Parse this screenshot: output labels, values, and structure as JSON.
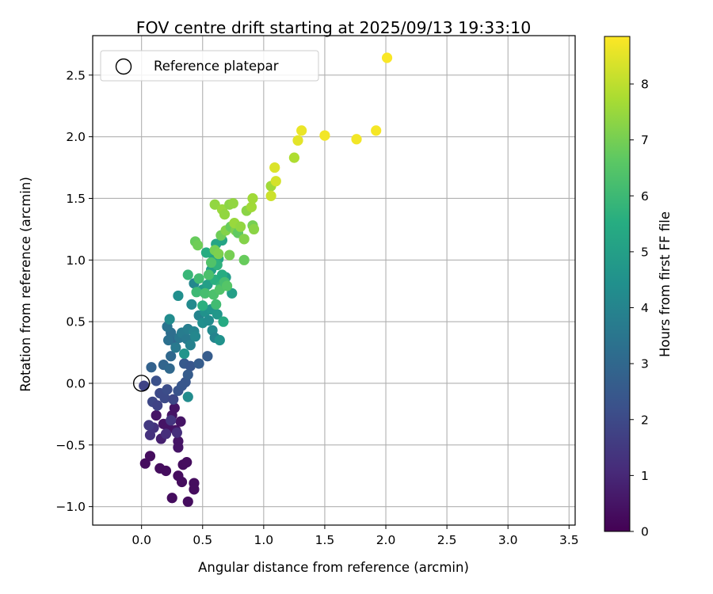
{
  "chart_data": {
    "type": "scatter",
    "title": "FOV centre drift starting at 2025/09/13 19:33:10",
    "xlabel": "Angular distance from reference (arcmin)",
    "ylabel": "Rotation from reference (arcmin)",
    "xlim": [
      -0.4,
      3.55
    ],
    "ylim": [
      -1.15,
      2.82
    ],
    "xticks": [
      0.0,
      0.5,
      1.0,
      1.5,
      2.0,
      2.5,
      3.0,
      3.5
    ],
    "xtick_labels": [
      "0.0",
      "0.5",
      "1.0",
      "1.5",
      "2.0",
      "2.5",
      "3.0",
      "3.5"
    ],
    "yticks": [
      -1.0,
      -0.5,
      0.0,
      0.5,
      1.0,
      1.5,
      2.0,
      2.5
    ],
    "ytick_labels": [
      "−1.0",
      "−0.5",
      "0.0",
      "0.5",
      "1.0",
      "1.5",
      "2.0",
      "2.5"
    ],
    "grid": true,
    "legend": {
      "position": "top-left",
      "entries": [
        "Reference platepar"
      ]
    },
    "reference_point": {
      "name": "Reference platepar",
      "x": 0.0,
      "y": 0.0
    },
    "colorbar": {
      "label": "Hours from first FF file",
      "min": 0,
      "max": 8.85,
      "ticks": [
        0,
        1,
        2,
        3,
        4,
        5,
        6,
        7,
        8
      ],
      "tick_labels": [
        "0",
        "1",
        "2",
        "3",
        "4",
        "5",
        "6",
        "7",
        "8"
      ],
      "colormap": "viridis"
    },
    "points": [
      {
        "x": 0.03,
        "y": -0.65,
        "h": 0.3
      },
      {
        "x": 0.07,
        "y": -0.59,
        "h": 0.3
      },
      {
        "x": 0.15,
        "y": -0.69,
        "h": 0.3
      },
      {
        "x": 0.2,
        "y": -0.71,
        "h": 0.3
      },
      {
        "x": 0.25,
        "y": -0.93,
        "h": 0.3
      },
      {
        "x": 0.3,
        "y": -0.75,
        "h": 0.3
      },
      {
        "x": 0.33,
        "y": -0.8,
        "h": 0.3
      },
      {
        "x": 0.34,
        "y": -0.66,
        "h": 0.3
      },
      {
        "x": 0.37,
        "y": -0.64,
        "h": 0.3
      },
      {
        "x": 0.38,
        "y": -0.96,
        "h": 0.3
      },
      {
        "x": 0.43,
        "y": -0.81,
        "h": 0.3
      },
      {
        "x": 0.43,
        "y": -0.86,
        "h": 0.3
      },
      {
        "x": 0.12,
        "y": -0.26,
        "h": 0.5
      },
      {
        "x": 0.18,
        "y": -0.33,
        "h": 0.5
      },
      {
        "x": 0.22,
        "y": -0.36,
        "h": 0.5
      },
      {
        "x": 0.25,
        "y": -0.26,
        "h": 0.5
      },
      {
        "x": 0.27,
        "y": -0.2,
        "h": 0.5
      },
      {
        "x": 0.28,
        "y": -0.38,
        "h": 0.5
      },
      {
        "x": 0.3,
        "y": -0.47,
        "h": 0.5
      },
      {
        "x": 0.32,
        "y": -0.31,
        "h": 0.5
      },
      {
        "x": 0.3,
        "y": -0.52,
        "h": 0.5
      },
      {
        "x": 0.16,
        "y": -0.45,
        "h": 0.8
      },
      {
        "x": 0.1,
        "y": -0.36,
        "h": 1.3
      },
      {
        "x": 0.07,
        "y": -0.42,
        "h": 1.3
      },
      {
        "x": 0.2,
        "y": -0.41,
        "h": 1.2
      },
      {
        "x": 0.24,
        "y": -0.3,
        "h": 1.4
      },
      {
        "x": 0.29,
        "y": -0.4,
        "h": 1.2
      },
      {
        "x": 0.06,
        "y": -0.34,
        "h": 1.5
      },
      {
        "x": 0.02,
        "y": -0.02,
        "h": 1.8
      },
      {
        "x": 0.09,
        "y": -0.15,
        "h": 1.9
      },
      {
        "x": 0.13,
        "y": -0.18,
        "h": 1.8
      },
      {
        "x": 0.15,
        "y": -0.08,
        "h": 2.0
      },
      {
        "x": 0.12,
        "y": 0.02,
        "h": 2.2
      },
      {
        "x": 0.19,
        "y": -0.12,
        "h": 2.0
      },
      {
        "x": 0.21,
        "y": -0.05,
        "h": 2.1
      },
      {
        "x": 0.26,
        "y": -0.13,
        "h": 1.9
      },
      {
        "x": 0.3,
        "y": -0.06,
        "h": 2.3
      },
      {
        "x": 0.33,
        "y": -0.02,
        "h": 2.4
      },
      {
        "x": 0.36,
        "y": 0.01,
        "h": 2.4
      },
      {
        "x": 0.35,
        "y": 0.16,
        "h": 2.5
      },
      {
        "x": 0.4,
        "y": 0.14,
        "h": 2.4
      },
      {
        "x": 0.38,
        "y": 0.07,
        "h": 2.6
      },
      {
        "x": 0.47,
        "y": 0.16,
        "h": 2.6
      },
      {
        "x": 0.54,
        "y": 0.22,
        "h": 2.6
      },
      {
        "x": 0.08,
        "y": 0.13,
        "h": 2.8
      },
      {
        "x": 0.18,
        "y": 0.15,
        "h": 2.9
      },
      {
        "x": 0.23,
        "y": 0.12,
        "h": 3.0
      },
      {
        "x": 0.24,
        "y": 0.22,
        "h": 3.0
      },
      {
        "x": 0.27,
        "y": 0.34,
        "h": 3.0
      },
      {
        "x": 0.24,
        "y": 0.41,
        "h": 3.2
      },
      {
        "x": 0.22,
        "y": 0.35,
        "h": 3.3
      },
      {
        "x": 0.21,
        "y": 0.46,
        "h": 3.4
      },
      {
        "x": 0.28,
        "y": 0.29,
        "h": 3.6
      },
      {
        "x": 0.31,
        "y": 0.37,
        "h": 3.5
      },
      {
        "x": 0.33,
        "y": 0.41,
        "h": 3.7
      },
      {
        "x": 0.37,
        "y": 0.36,
        "h": 3.6
      },
      {
        "x": 0.38,
        "y": 0.44,
        "h": 3.8
      },
      {
        "x": 0.4,
        "y": 0.31,
        "h": 3.9
      },
      {
        "x": 0.43,
        "y": 0.42,
        "h": 4.0
      },
      {
        "x": 0.44,
        "y": 0.38,
        "h": 4.1
      },
      {
        "x": 0.38,
        "y": -0.11,
        "h": 4.3
      },
      {
        "x": 0.35,
        "y": 0.24,
        "h": 4.6
      },
      {
        "x": 0.3,
        "y": 0.71,
        "h": 4.4
      },
      {
        "x": 0.23,
        "y": 0.52,
        "h": 4.3
      },
      {
        "x": 0.41,
        "y": 0.64,
        "h": 4.2
      },
      {
        "x": 0.43,
        "y": 0.81,
        "h": 4.1
      },
      {
        "x": 0.47,
        "y": 0.55,
        "h": 4.0
      },
      {
        "x": 0.5,
        "y": 0.49,
        "h": 4.4
      },
      {
        "x": 0.52,
        "y": 0.58,
        "h": 4.5
      },
      {
        "x": 0.55,
        "y": 0.51,
        "h": 4.3
      },
      {
        "x": 0.57,
        "y": 0.6,
        "h": 4.6
      },
      {
        "x": 0.58,
        "y": 0.43,
        "h": 4.2
      },
      {
        "x": 0.6,
        "y": 0.37,
        "h": 4.0
      },
      {
        "x": 0.62,
        "y": 0.56,
        "h": 4.7
      },
      {
        "x": 0.64,
        "y": 0.35,
        "h": 4.5
      },
      {
        "x": 0.5,
        "y": 0.76,
        "h": 4.8
      },
      {
        "x": 0.54,
        "y": 0.8,
        "h": 5.0
      },
      {
        "x": 0.57,
        "y": 0.92,
        "h": 5.0
      },
      {
        "x": 0.58,
        "y": 1.05,
        "h": 5.1
      },
      {
        "x": 0.61,
        "y": 1.13,
        "h": 5.2
      },
      {
        "x": 0.63,
        "y": 1.01,
        "h": 5.3
      },
      {
        "x": 0.66,
        "y": 1.16,
        "h": 5.2
      },
      {
        "x": 0.69,
        "y": 0.86,
        "h": 4.9
      },
      {
        "x": 0.74,
        "y": 0.73,
        "h": 5.0
      },
      {
        "x": 0.53,
        "y": 1.06,
        "h": 5.5
      },
      {
        "x": 0.6,
        "y": 0.84,
        "h": 5.6
      },
      {
        "x": 0.62,
        "y": 0.96,
        "h": 5.7
      },
      {
        "x": 0.65,
        "y": 0.79,
        "h": 5.8
      },
      {
        "x": 0.66,
        "y": 0.88,
        "h": 5.5
      },
      {
        "x": 0.67,
        "y": 0.5,
        "h": 5.4
      },
      {
        "x": 0.5,
        "y": 0.63,
        "h": 5.6
      },
      {
        "x": 0.38,
        "y": 0.88,
        "h": 5.9
      },
      {
        "x": 0.45,
        "y": 0.74,
        "h": 6.0
      },
      {
        "x": 0.47,
        "y": 0.85,
        "h": 6.1
      },
      {
        "x": 0.52,
        "y": 0.73,
        "h": 6.2
      },
      {
        "x": 0.55,
        "y": 0.88,
        "h": 6.3
      },
      {
        "x": 0.57,
        "y": 0.98,
        "h": 6.4
      },
      {
        "x": 0.59,
        "y": 0.72,
        "h": 6.3
      },
      {
        "x": 0.61,
        "y": 0.64,
        "h": 6.1
      },
      {
        "x": 0.64,
        "y": 0.76,
        "h": 6.4
      },
      {
        "x": 0.68,
        "y": 0.82,
        "h": 6.2
      },
      {
        "x": 0.7,
        "y": 0.79,
        "h": 6.5
      },
      {
        "x": 0.44,
        "y": 1.15,
        "h": 6.8
      },
      {
        "x": 0.46,
        "y": 1.12,
        "h": 6.9
      },
      {
        "x": 0.6,
        "y": 1.08,
        "h": 7.0
      },
      {
        "x": 0.63,
        "y": 1.05,
        "h": 7.1
      },
      {
        "x": 0.65,
        "y": 1.2,
        "h": 6.9
      },
      {
        "x": 0.69,
        "y": 1.24,
        "h": 7.2
      },
      {
        "x": 0.72,
        "y": 1.04,
        "h": 7.0
      },
      {
        "x": 0.73,
        "y": 1.27,
        "h": 6.8
      },
      {
        "x": 0.77,
        "y": 1.24,
        "h": 7.1
      },
      {
        "x": 0.79,
        "y": 1.22,
        "h": 6.7
      },
      {
        "x": 0.84,
        "y": 1.0,
        "h": 6.8
      },
      {
        "x": 0.84,
        "y": 1.17,
        "h": 7.2
      },
      {
        "x": 0.86,
        "y": 1.4,
        "h": 7.3
      },
      {
        "x": 0.91,
        "y": 1.28,
        "h": 7.0
      },
      {
        "x": 0.92,
        "y": 1.25,
        "h": 7.3
      },
      {
        "x": 0.6,
        "y": 1.45,
        "h": 7.4
      },
      {
        "x": 0.66,
        "y": 1.41,
        "h": 7.5
      },
      {
        "x": 0.68,
        "y": 1.37,
        "h": 7.4
      },
      {
        "x": 0.72,
        "y": 1.45,
        "h": 7.3
      },
      {
        "x": 0.75,
        "y": 1.46,
        "h": 7.4
      },
      {
        "x": 0.76,
        "y": 1.3,
        "h": 7.5
      },
      {
        "x": 0.81,
        "y": 1.27,
        "h": 7.4
      },
      {
        "x": 0.9,
        "y": 1.43,
        "h": 7.6
      },
      {
        "x": 0.91,
        "y": 1.5,
        "h": 7.6
      },
      {
        "x": 1.06,
        "y": 1.6,
        "h": 7.6
      },
      {
        "x": 1.25,
        "y": 1.83,
        "h": 7.8
      },
      {
        "x": 1.06,
        "y": 1.52,
        "h": 8.2
      },
      {
        "x": 1.1,
        "y": 1.64,
        "h": 8.3
      },
      {
        "x": 1.09,
        "y": 1.75,
        "h": 8.4
      },
      {
        "x": 1.28,
        "y": 1.97,
        "h": 8.5
      },
      {
        "x": 1.31,
        "y": 2.05,
        "h": 8.6
      },
      {
        "x": 1.5,
        "y": 2.01,
        "h": 8.7
      },
      {
        "x": 1.76,
        "y": 1.98,
        "h": 8.7
      },
      {
        "x": 1.92,
        "y": 2.05,
        "h": 8.75
      },
      {
        "x": 2.01,
        "y": 2.64,
        "h": 8.8
      }
    ]
  }
}
